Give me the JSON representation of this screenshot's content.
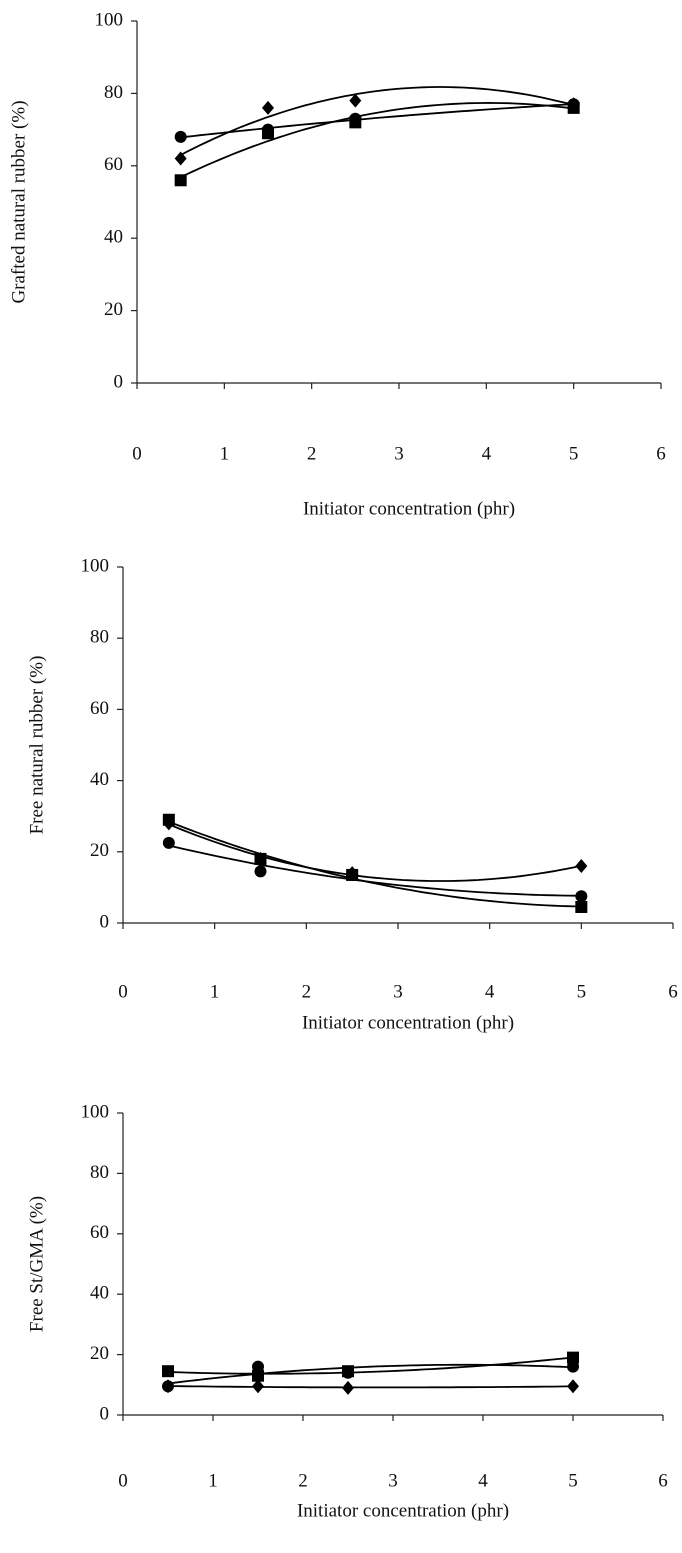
{
  "chart_data": [
    {
      "type": "scatter",
      "trendline": "poly2",
      "y_label": "Grafted natural rubber (%)",
      "x_label": "Initiator concentration (phr)",
      "x": [
        0.5,
        1.5,
        2.5,
        5
      ],
      "series": [
        {
          "marker": "diamond",
          "color": "#000000",
          "values": [
            62,
            76,
            78,
            77
          ]
        },
        {
          "marker": "circle",
          "color": "#000000",
          "values": [
            68,
            70,
            73,
            77
          ]
        },
        {
          "marker": "square",
          "color": "#000000",
          "values": [
            56,
            69,
            72,
            76
          ]
        }
      ],
      "xlim": [
        0,
        6
      ],
      "xticks": [
        0,
        1,
        2,
        3,
        4,
        5,
        6
      ],
      "ylim": [
        0,
        100
      ],
      "yticks": [
        0,
        20,
        40,
        60,
        80,
        100
      ],
      "grid": false
    },
    {
      "type": "scatter",
      "trendline": "poly2",
      "y_label": "Free natural rubber (%)",
      "x_label": "Initiator concentration (phr)",
      "x": [
        0.5,
        1.5,
        2.5,
        5
      ],
      "series": [
        {
          "marker": "diamond",
          "color": "#000000",
          "values": [
            28,
            18,
            14,
            16
          ]
        },
        {
          "marker": "circle",
          "color": "#000000",
          "values": [
            22.5,
            14.5,
            13.5,
            7.5
          ]
        },
        {
          "marker": "square",
          "color": "#000000",
          "values": [
            29,
            18,
            13.5,
            4.5
          ]
        }
      ],
      "xlim": [
        0,
        6
      ],
      "xticks": [
        0,
        1,
        2,
        3,
        4,
        5,
        6
      ],
      "ylim": [
        0,
        100
      ],
      "yticks": [
        0,
        20,
        40,
        60,
        80,
        100
      ],
      "grid": false
    },
    {
      "type": "scatter",
      "trendline": "poly2",
      "y_label": "Free St/GMA (%)",
      "x_label": "Initiator concentration (phr)",
      "x": [
        0.5,
        1.5,
        2.5,
        5
      ],
      "series": [
        {
          "marker": "diamond",
          "color": "#000000",
          "values": [
            9.5,
            9.5,
            9,
            9.5
          ]
        },
        {
          "marker": "circle",
          "color": "#000000",
          "values": [
            9.5,
            16,
            14,
            16
          ]
        },
        {
          "marker": "square",
          "color": "#000000",
          "values": [
            14.5,
            13,
            14.5,
            19
          ]
        }
      ],
      "xlim": [
        0,
        6
      ],
      "xticks": [
        0,
        1,
        2,
        3,
        4,
        5,
        6
      ],
      "ylim": [
        0,
        100
      ],
      "yticks": [
        0,
        20,
        40,
        60,
        80,
        100
      ],
      "grid": false
    }
  ]
}
